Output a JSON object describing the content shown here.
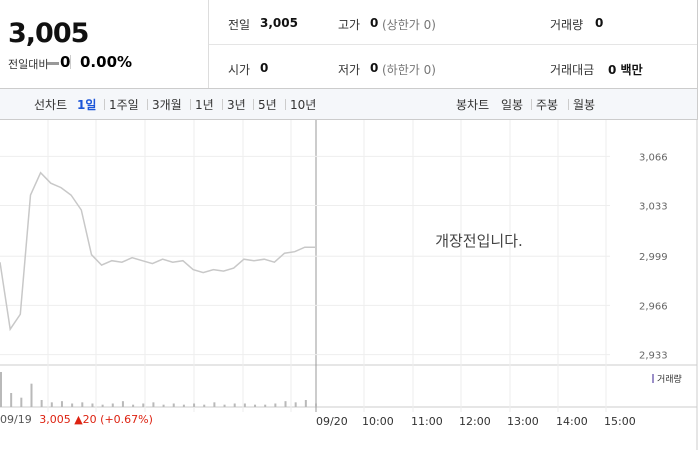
{
  "header": {
    "price": "3,005",
    "change_label": "전일대비",
    "change": "0",
    "change_pct": "0.00%",
    "info": [
      {
        "label": "전일",
        "value": "3,005"
      },
      {
        "label": "고가",
        "value": "0",
        "extra": "(상한가 0)"
      },
      {
        "label": "거래량",
        "value": "0"
      },
      {
        "label": "시가",
        "value": "0"
      },
      {
        "label": "저가",
        "value": "0",
        "extra": "(하한가 0)"
      },
      {
        "label": "거래대금",
        "value": "0 백만"
      }
    ]
  },
  "tabs": {
    "line_label": "선차트",
    "line_tabs": [
      "1일",
      "1주일",
      "3개월",
      "1년",
      "3년",
      "5년",
      "10년"
    ],
    "candle_label": "봉차트",
    "candle_tabs": [
      "일봉",
      "주봉",
      "월봉"
    ]
  },
  "chart_data": {
    "type": "line",
    "color": "#c8c8c8",
    "values": [
      2995,
      2950,
      2960,
      3040,
      3055,
      3048,
      3045,
      3040,
      3030,
      3000,
      2993,
      2996,
      2995,
      2998,
      2996,
      2994,
      2997,
      2995,
      2996,
      2990,
      2988,
      2990,
      2989,
      2991,
      2997,
      2996,
      2997,
      2995,
      3001,
      3002,
      3005,
      3005
    ],
    "ylim": [
      2926,
      3085
    ],
    "yticks": [
      {
        "value": 2933,
        "label": "2,933"
      },
      {
        "value": 2966,
        "label": "2,966"
      },
      {
        "value": 2999,
        "label": "2,999"
      },
      {
        "value": 3033,
        "label": "3,033"
      },
      {
        "value": 3066,
        "label": "3,066"
      }
    ],
    "volume": {
      "name": "거래량",
      "color": "#b9b9b9",
      "values": [
        30,
        12,
        8,
        20,
        6,
        4,
        5,
        3,
        4,
        3,
        2,
        3,
        5,
        2,
        3,
        4,
        2,
        3,
        2,
        3,
        2,
        4,
        2,
        3,
        3,
        2,
        2,
        3,
        5,
        4,
        6,
        3
      ]
    },
    "time_labels": [
      "09/20",
      "10:00",
      "11:00",
      "12:00",
      "13:00",
      "14:00",
      "15:00"
    ],
    "message": "개장전입니다."
  },
  "footer": {
    "date": "09/19",
    "price": "3,005",
    "change": "20",
    "change_pct": "(+0.67%)"
  }
}
